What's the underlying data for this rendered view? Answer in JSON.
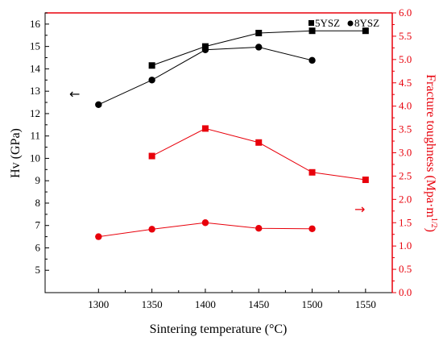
{
  "chart_data": {
    "type": "line",
    "xlabel": "Sintering temperature (°C)",
    "ylabel_left": "Hv (GPa)",
    "ylabel_right_main": "Fracture toughness (Mpa·m",
    "ylabel_right_sup": "1/2",
    "ylabel_right_close": ")",
    "xlim": [
      1250,
      1575
    ],
    "xticks": [
      1300,
      1350,
      1400,
      1450,
      1500,
      1550
    ],
    "ylim_left": [
      4,
      16.5
    ],
    "yticks_left": [
      5,
      6,
      7,
      8,
      9,
      10,
      11,
      12,
      13,
      14,
      15,
      16
    ],
    "ylim_right": [
      0,
      6
    ],
    "yticks_right": [
      "0.0",
      "0.5",
      "1.0",
      "1.5",
      "2.0",
      "2.5",
      "3.0",
      "3.5",
      "4.0",
      "4.5",
      "5.0",
      "5.5",
      "6.0"
    ],
    "legend": [
      {
        "name": "5YSZ",
        "marker": "square"
      },
      {
        "name": "8YSZ",
        "marker": "circle"
      }
    ],
    "series": [
      {
        "name": "5YSZ",
        "axis": "left",
        "marker": "square",
        "color": "#000000",
        "x": [
          1350,
          1400,
          1450,
          1500,
          1550
        ],
        "y": [
          14.15,
          15.0,
          15.6,
          15.7,
          15.7
        ]
      },
      {
        "name": "8YSZ",
        "axis": "left",
        "marker": "circle",
        "color": "#000000",
        "x": [
          1300,
          1350,
          1400,
          1450,
          1500
        ],
        "y": [
          12.4,
          13.5,
          14.85,
          14.97,
          14.38
        ]
      },
      {
        "name": "5YSZ",
        "axis": "right",
        "marker": "square",
        "color": "#e8000b",
        "x": [
          1350,
          1400,
          1450,
          1500,
          1550
        ],
        "y": [
          2.93,
          3.52,
          3.22,
          2.58,
          2.42
        ]
      },
      {
        "name": "8YSZ",
        "axis": "right",
        "marker": "circle",
        "color": "#e8000b",
        "x": [
          1300,
          1350,
          1400,
          1450,
          1500
        ],
        "y": [
          1.2,
          1.36,
          1.5,
          1.38,
          1.37
        ]
      }
    ],
    "annotations": {
      "left_arrow": "←",
      "right_arrow": "→"
    },
    "right_axis_color": "#e8000b"
  }
}
